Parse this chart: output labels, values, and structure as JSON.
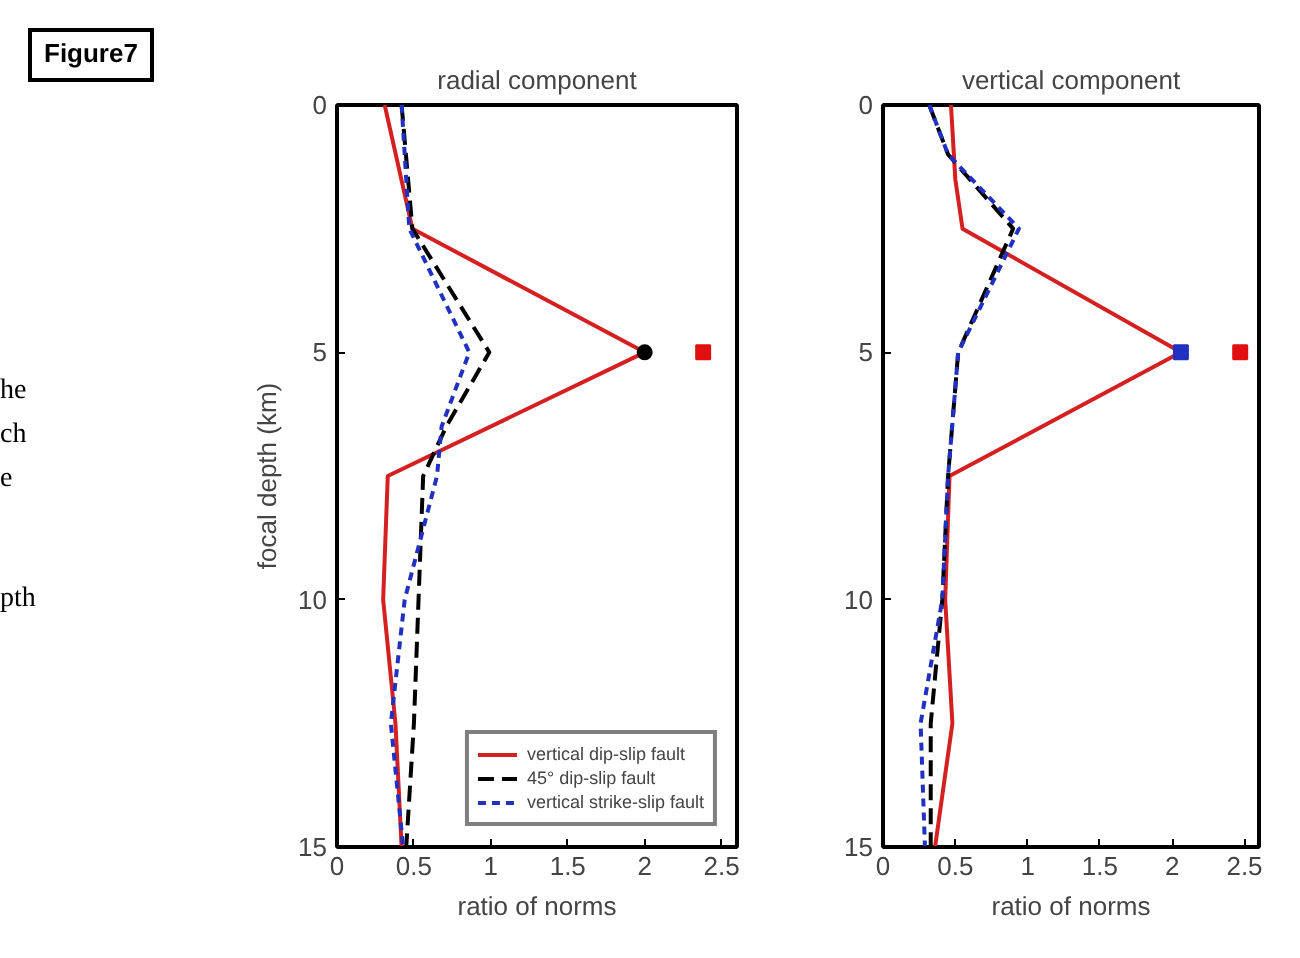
{
  "chart_data": [
    {
      "type": "line",
      "title": "radial component",
      "xlabel": "ratio of norms",
      "ylabel": "focal depth (km)",
      "annotations": [
        "Figure7",
        "he",
        "ch",
        "e",
        "pth"
      ],
      "xlim": [
        0,
        2.6
      ],
      "xticks": [
        0,
        0.5,
        1,
        1.5,
        2,
        2.5
      ],
      "ylim": [
        15,
        0
      ],
      "yticks": [
        0,
        5,
        10,
        15
      ],
      "grid": false,
      "legend": "bottom right",
      "series": [
        {
          "name": "vertical dip-slip fault",
          "color": "#d42020",
          "line_style": "solid",
          "x": [
            0.31,
            0.49,
            2.0,
            0.33,
            0.3,
            0.38,
            0.42
          ],
          "values": [
            0,
            2.5,
            5,
            7.5,
            10,
            12.5,
            15
          ]
        },
        {
          "name": "45° dip-slip fault",
          "color": "#000000",
          "line_style": "dashed",
          "x": [
            0.42,
            0.49,
            0.99,
            0.71,
            0.56,
            0.53,
            0.5,
            0.45
          ],
          "values": [
            0,
            2.5,
            5,
            6.5,
            7.5,
            10,
            12.5,
            15
          ]
        },
        {
          "name": "vertical strike-slip fault",
          "color": "#2030c0",
          "line_style": "dotted",
          "x": [
            0.42,
            0.47,
            0.86,
            0.68,
            0.65,
            0.44,
            0.35,
            0.43
          ],
          "values": [
            0,
            2.5,
            5,
            6.5,
            7.5,
            10,
            12.5,
            15
          ]
        },
        {
          "type": "scatter",
          "marker": "circle",
          "color": "#000000",
          "x": [
            2.0
          ],
          "values": [
            5
          ]
        },
        {
          "type": "scatter",
          "marker": "square",
          "color": "#e01010",
          "x": [
            2.38
          ],
          "values": [
            5
          ]
        }
      ]
    },
    {
      "type": "line",
      "title": "vertical component",
      "xlabel": "ratio of norms",
      "xlim": [
        0,
        2.6
      ],
      "xticks": [
        0,
        0.5,
        1,
        1.5,
        2,
        2.5
      ],
      "ylim": [
        15,
        0
      ],
      "yticks": [
        0,
        5,
        10,
        15
      ],
      "grid": false,
      "series": [
        {
          "color": "#d42020",
          "line_style": "solid",
          "x": [
            0.47,
            0.5,
            0.55,
            2.06,
            0.46,
            0.43,
            0.48,
            0.36
          ],
          "values": [
            0,
            1.5,
            2.5,
            5,
            7.5,
            10,
            12.5,
            15
          ]
        },
        {
          "color": "#000000",
          "line_style": "dashed",
          "x": [
            0.32,
            0.45,
            0.9,
            0.52,
            0.45,
            0.41,
            0.33,
            0.33
          ],
          "values": [
            0,
            1,
            2.5,
            5,
            7.5,
            10,
            12.5,
            15
          ]
        },
        {
          "color": "#2030c0",
          "line_style": "dotted",
          "x": [
            0.32,
            0.45,
            0.94,
            0.52,
            0.45,
            0.41,
            0.26,
            0.29
          ],
          "values": [
            0,
            1,
            2.5,
            5,
            7.5,
            10,
            12.5,
            15
          ]
        },
        {
          "type": "scatter",
          "marker": "square",
          "color": "#2030c0",
          "x": [
            2.06
          ],
          "values": [
            5
          ]
        },
        {
          "type": "scatter",
          "marker": "square",
          "color": "#e01010",
          "x": [
            2.47
          ],
          "values": [
            5
          ]
        }
      ]
    }
  ]
}
